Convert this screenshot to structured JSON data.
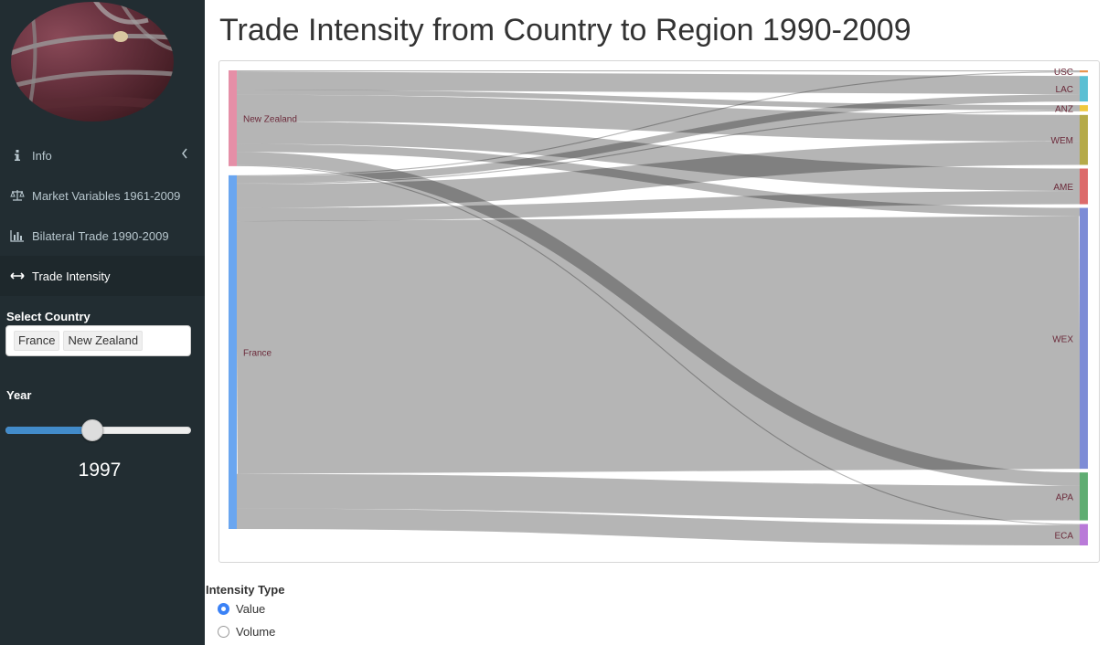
{
  "sidebar": {
    "menu": [
      {
        "label": "Info",
        "icon": "info-icon",
        "active": false,
        "has_chevron": true
      },
      {
        "label": "Market Variables 1961-2009",
        "icon": "balance-scale-icon",
        "active": false
      },
      {
        "label": "Bilateral Trade 1990-2009",
        "icon": "bar-chart-icon",
        "active": false
      },
      {
        "label": "Trade Intensity",
        "icon": "arrows-h-icon",
        "active": true
      }
    ],
    "select_country": {
      "label": "Select Country",
      "selected": [
        "France",
        "New Zealand"
      ]
    },
    "year": {
      "label": "Year",
      "value": "1997",
      "range": [
        1990,
        2009
      ]
    }
  },
  "main": {
    "title": "Trade Intensity from Country to Region 1990-2009",
    "intensity_type": {
      "label": "Intensity Type",
      "options": [
        {
          "label": "Value",
          "checked": true
        },
        {
          "label": "Volume",
          "checked": false
        }
      ]
    }
  },
  "chart_data": {
    "type": "sankey",
    "sources": [
      {
        "name": "New Zealand",
        "color": "#e58fa7"
      },
      {
        "name": "France",
        "color": "#6aa6f0"
      }
    ],
    "targets": [
      {
        "name": "USC",
        "color": "#e8954f"
      },
      {
        "name": "LAC",
        "color": "#5bbfd3"
      },
      {
        "name": "ANZ",
        "color": "#f0c93e"
      },
      {
        "name": "WEM",
        "color": "#b5aa49"
      },
      {
        "name": "AME",
        "color": "#dc6b6b"
      },
      {
        "name": "WEX",
        "color": "#7d8cd6"
      },
      {
        "name": "APA",
        "color": "#5fad72"
      },
      {
        "name": "ECA",
        "color": "#b97ad8"
      }
    ],
    "links": [
      {
        "source": "New Zealand",
        "target": "USC",
        "value": 1
      },
      {
        "source": "New Zealand",
        "target": "LAC",
        "value": 18
      },
      {
        "source": "New Zealand",
        "target": "ANZ",
        "value": 5
      },
      {
        "source": "New Zealand",
        "target": "WEM",
        "value": 26
      },
      {
        "source": "New Zealand",
        "target": "AME",
        "value": 22
      },
      {
        "source": "New Zealand",
        "target": "WEX",
        "value": 8
      },
      {
        "source": "New Zealand",
        "target": "APA",
        "value": 13
      },
      {
        "source": "New Zealand",
        "target": "ECA",
        "value": 1
      },
      {
        "source": "France",
        "target": "USC",
        "value": 1
      },
      {
        "source": "France",
        "target": "LAC",
        "value": 7
      },
      {
        "source": "France",
        "target": "ANZ",
        "value": 1
      },
      {
        "source": "France",
        "target": "WEM",
        "value": 23
      },
      {
        "source": "France",
        "target": "AME",
        "value": 13
      },
      {
        "source": "France",
        "target": "WEX",
        "value": 248
      },
      {
        "source": "France",
        "target": "APA",
        "value": 34
      },
      {
        "source": "France",
        "target": "ECA",
        "value": 20
      }
    ]
  }
}
